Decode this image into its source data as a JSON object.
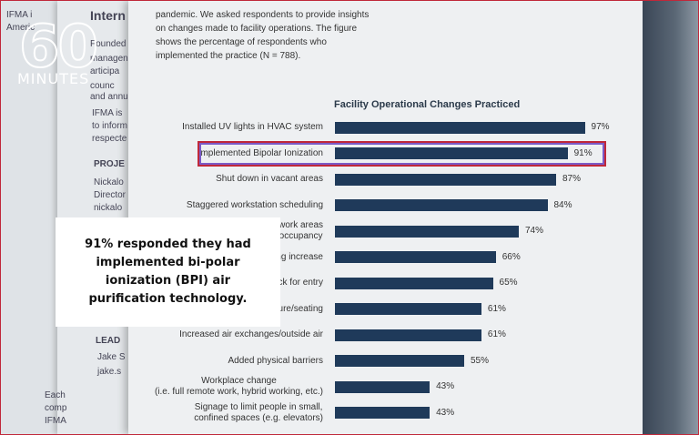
{
  "chart_data": {
    "type": "hbar",
    "intro": "pandemic. We asked respondents to provide insights on changes made to facility operations. The figure shows the percentage of respondents who implemented the practice (N = 788).",
    "title": "Facility Operational Changes Practiced",
    "categories": [
      "Installed UV lights in HVAC system",
      "Implemented Bipolar Ionization",
      "Shut down in vacant areas",
      "Staggered workstation scheduling",
      "work areas\noccupancy",
      "ng increase",
      "ck for entry",
      "ure/seating",
      "Increased air exchanges/outside air",
      "Added physical barriers",
      "Workplace change\n(i.e. full remote work, hybrid working, etc.)",
      "Signage to limit people in small,\nconfined spaces (e.g. elevators)"
    ],
    "values": [
      97,
      91,
      87,
      84,
      74,
      66,
      65,
      61,
      61,
      55,
      43,
      43
    ],
    "value_labels": [
      "97%",
      "91%",
      "87%",
      "84%",
      "74%",
      "66%",
      "65%",
      "61%",
      "61%",
      "55%",
      "43%",
      "43%"
    ],
    "color": "#1f3a5a",
    "xlim": [
      10,
      100
    ],
    "highlight_index": 1,
    "highlight_color": "#c0283a"
  },
  "overlay": {
    "text": "91% responded they had implemented bi-polar ionization (BPI) air purification technology."
  },
  "logo": {
    "number": "60",
    "word": "MINUTES"
  },
  "background_fragments": [
    "IFMA i",
    "Americ",
    "Intern",
    "Founded",
    "managen",
    "articipa",
    "counc",
    "and annu",
    "IFMA is",
    "to inform",
    "respecte",
    "PROJE",
    "Nickalo",
    "Director",
    "nickalo",
    "LEAD",
    "Jake S",
    "jake.s",
    "Each",
    "comp",
    "IFMA"
  ]
}
